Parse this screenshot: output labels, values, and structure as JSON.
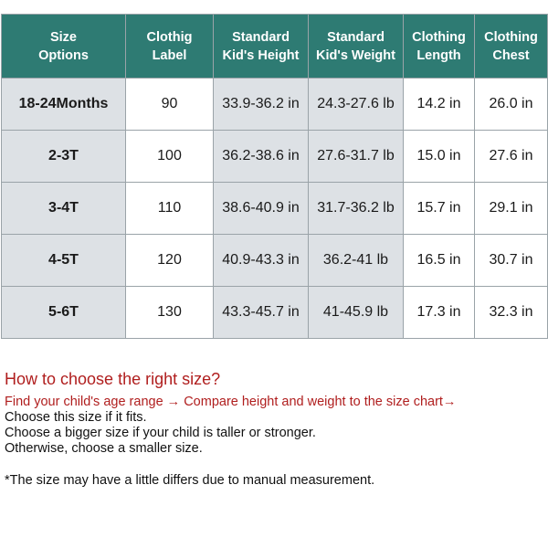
{
  "table": {
    "headers": [
      [
        "Size",
        "Options"
      ],
      [
        "Clothig",
        "Label"
      ],
      [
        "Standard",
        "Kid's Height"
      ],
      [
        "Standard",
        "Kid's Weight"
      ],
      [
        "Clothing",
        "Length"
      ],
      [
        "Clothing",
        "Chest"
      ]
    ],
    "rows": [
      [
        "18-24Months",
        "90",
        "33.9-36.2 in",
        "24.3-27.6 lb",
        "14.2 in",
        "26.0 in"
      ],
      [
        "2-3T",
        "100",
        "36.2-38.6 in",
        "27.6-31.7 lb",
        "15.0 in",
        "27.6 in"
      ],
      [
        "3-4T",
        "110",
        "38.6-40.9 in",
        "31.7-36.2 lb",
        "15.7 in",
        "29.1 in"
      ],
      [
        "4-5T",
        "120",
        "40.9-43.3 in",
        "36.2-41 lb",
        "16.5 in",
        "30.7 in"
      ],
      [
        "5-6T",
        "130",
        "43.3-45.7 in",
        "41-45.9 lb",
        "17.3 in",
        "32.3 in"
      ]
    ]
  },
  "notes": {
    "title": "How to choose the right size?",
    "steps": "Find your child's age range → Compare height and weight to the size chart→",
    "lines": [
      "Choose this size if it fits.",
      "Choose a bigger size if your child is taller or stronger.",
      "Otherwise, choose a smaller size."
    ],
    "footnote": "*The size  may have a little differs due to manual measurement."
  },
  "colors": {
    "header_bg": "#2e7b73",
    "shaded_cell_bg": "#dde1e5",
    "accent_text": "#b01e1e"
  }
}
